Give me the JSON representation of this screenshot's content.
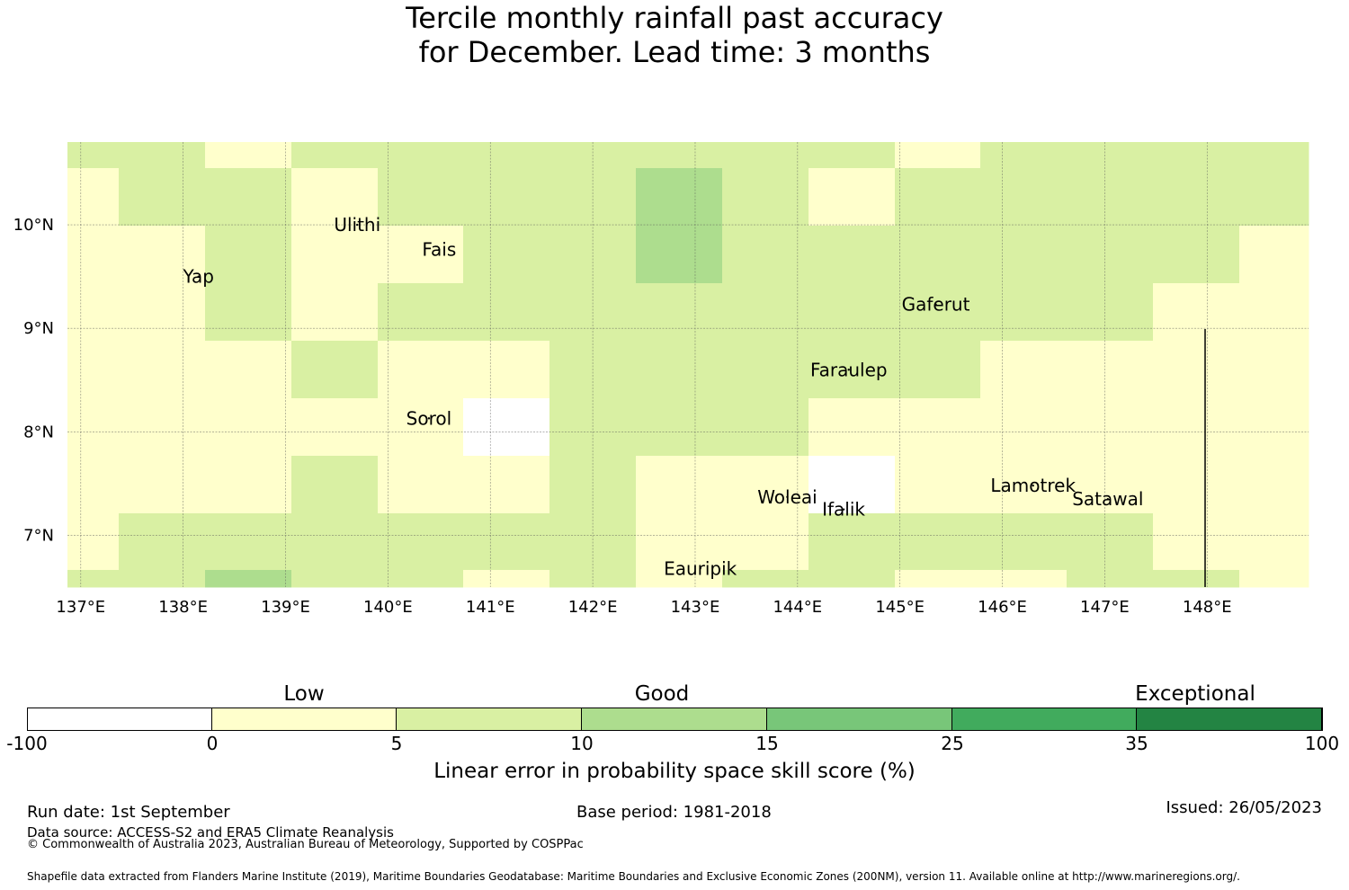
{
  "title": {
    "line1": "Tercile monthly rainfall past accuracy",
    "line2": "for December. Lead time: 3 months"
  },
  "map": {
    "lat_ticks": [
      {
        "value": 10,
        "label": "10°N"
      },
      {
        "value": 9,
        "label": "9°N"
      },
      {
        "value": 8,
        "label": "8°N"
      },
      {
        "value": 7,
        "label": "7°N"
      }
    ],
    "lon_ticks": [
      {
        "value": 137,
        "label": "137°E"
      },
      {
        "value": 138,
        "label": "138°E"
      },
      {
        "value": 139,
        "label": "139°E"
      },
      {
        "value": 140,
        "label": "140°E"
      },
      {
        "value": 141,
        "label": "141°E"
      },
      {
        "value": 142,
        "label": "142°E"
      },
      {
        "value": 143,
        "label": "143°E"
      },
      {
        "value": 144,
        "label": "144°E"
      },
      {
        "value": 145,
        "label": "145°E"
      },
      {
        "value": 146,
        "label": "146°E"
      },
      {
        "value": 147,
        "label": "147°E"
      },
      {
        "value": 148,
        "label": "148°E"
      }
    ],
    "islands": [
      {
        "name": "Yap",
        "lon": 138.15,
        "lat": 9.5
      },
      {
        "name": "Ulithi",
        "lon": 139.7,
        "lat": 10.0
      },
      {
        "name": "Fais",
        "lon": 140.5,
        "lat": 9.76
      },
      {
        "name": "Sorol",
        "lon": 140.4,
        "lat": 8.13
      },
      {
        "name": "Gaferut",
        "lon": 145.35,
        "lat": 9.23
      },
      {
        "name": "Faraulep",
        "lon": 144.5,
        "lat": 8.6
      },
      {
        "name": "Woleai",
        "lon": 143.9,
        "lat": 7.37
      },
      {
        "name": "Ifalik",
        "lon": 144.45,
        "lat": 7.25
      },
      {
        "name": "Lamotrek",
        "lon": 146.3,
        "lat": 7.48
      },
      {
        "name": "Satawal",
        "lon": 147.03,
        "lat": 7.35
      },
      {
        "name": "Eauripik",
        "lon": 143.05,
        "lat": 6.68
      }
    ],
    "category_colors": {
      "below0": "#ffffff",
      "0-5": "#ffffcc",
      "5-10": "#d9f0a3",
      "10-15": "#addd8e",
      "15-25": "#78c679",
      "25-35": "#41ab5d",
      "35-100": "#238443"
    },
    "grid_legend": "rows listed from north to south; each character is one grid cell: W = below 0, Y = 0-5, L = 5-10, G = 10-15",
    "grid": [
      "LLYLLLLLLLYLLLL",
      "YLLYLLLGLYLLLLL",
      "YYLYYLLGLLLLLLY",
      "YYLYLLLLLLLLLYY",
      "YYYLYYLLLLLYYYY",
      "YYYYYWLLLYYYYYY",
      "YYYLYYLYYWYYYYY",
      "YLLLLLLYYLLLLYY",
      "LLGLLYLYLLYYLLY"
    ]
  },
  "colorbar": {
    "ticks": [
      "-100",
      "0",
      "5",
      "10",
      "15",
      "25",
      "35",
      "100"
    ],
    "categories": [
      "Low",
      "Good",
      "Exceptional"
    ],
    "label": "Linear error in probability space skill score (%)"
  },
  "footer": {
    "run_date": "Run date: 1st September",
    "base_period": "Base period: 1981-2018",
    "issued": "Issued: 26/05/2023",
    "data_source": "Data source: ACCESS-S2 and ERA5 Climate Reanalysis",
    "copyright": "© Commonwealth of Australia 2023, Australian Bureau of Meteorology, Supported by COSPPac",
    "shapefile": "Shapefile data extracted from Flanders Marine Institute (2019), Maritime Boundaries Geodatabase: Maritime Boundaries and Exclusive Economic Zones (200NM), version 11. Available online at http://www.marineregions.org/."
  }
}
